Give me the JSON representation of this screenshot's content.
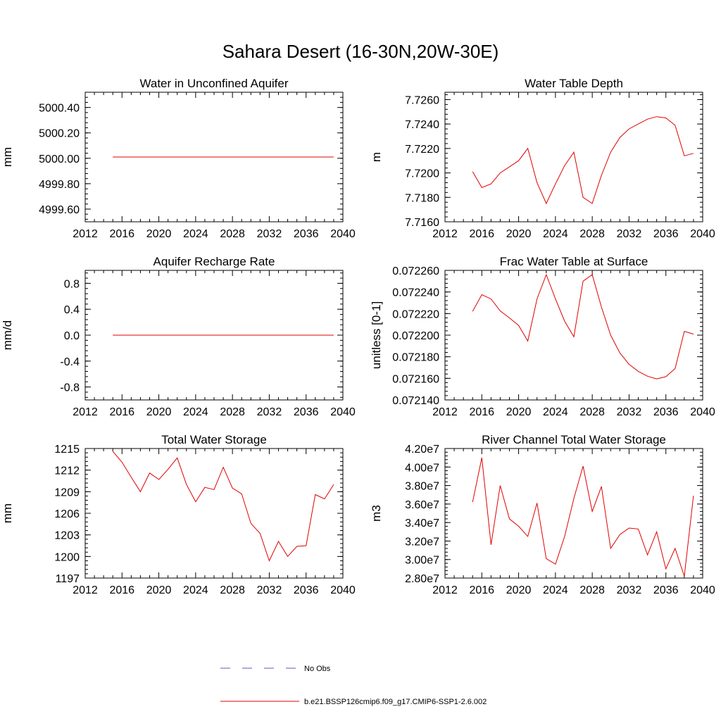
{
  "figure": {
    "title": "Sahara Desert (16-30N,20W-30E)"
  },
  "legend": {
    "items": [
      {
        "label": "No Obs",
        "color": "#5a5ac8",
        "style": "dashed"
      },
      {
        "label": "b.e21.BSSP126cmip6.f09_g17.CMIP6-SSP1-2.6.002",
        "color": "#e00000",
        "style": "solid"
      }
    ]
  },
  "chart_data": [
    {
      "type": "line",
      "title": "Water in Unconfined Aquifer",
      "ylabel": "mm",
      "xlim": [
        2012,
        2040
      ],
      "ylim": [
        4999.5,
        5000.52
      ],
      "xticks": [
        2012,
        2016,
        2020,
        2024,
        2028,
        2032,
        2036,
        2040
      ],
      "xtick_labels": [
        "2012",
        "2016",
        "2020",
        "2024",
        "2028",
        "2032",
        "2036",
        "2040"
      ],
      "yticks": [
        4999.6,
        4999.8,
        5000.0,
        5000.2,
        5000.4
      ],
      "ytick_labels": [
        "4999.60",
        "4999.80",
        "5000.00",
        "5000.20",
        "5000.40"
      ],
      "series": [
        {
          "color": "#e00000",
          "x": [
            2015,
            2039
          ],
          "y": [
            5000.01,
            5000.01
          ]
        }
      ]
    },
    {
      "type": "line",
      "title": "Water Table Depth",
      "ylabel": "m",
      "xlim": [
        2012,
        2040
      ],
      "ylim": [
        7.716,
        7.7266
      ],
      "xticks": [
        2012,
        2016,
        2020,
        2024,
        2028,
        2032,
        2036,
        2040
      ],
      "xtick_labels": [
        "2012",
        "2016",
        "2020",
        "2024",
        "2028",
        "2032",
        "2036",
        "2040"
      ],
      "yticks": [
        7.716,
        7.718,
        7.72,
        7.722,
        7.724,
        7.726
      ],
      "ytick_labels": [
        "7.7160",
        "7.7180",
        "7.7200",
        "7.7220",
        "7.7240",
        "7.7260"
      ],
      "series": [
        {
          "color": "#e00000",
          "x": [
            2015,
            2016,
            2017,
            2018,
            2019,
            2020,
            2021,
            2022,
            2023,
            2024,
            2025,
            2026,
            2027,
            2028,
            2029,
            2030,
            2031,
            2032,
            2033,
            2034,
            2035,
            2036,
            2037,
            2038,
            2039
          ],
          "y": [
            7.7201,
            7.7188,
            7.7191,
            7.72,
            7.7205,
            7.721,
            7.722,
            7.7192,
            7.7175,
            7.7191,
            7.7206,
            7.7217,
            7.718,
            7.7175,
            7.7198,
            7.7217,
            7.7229,
            7.7236,
            7.724,
            7.7244,
            7.7246,
            7.7245,
            7.7239,
            7.7214,
            7.7216
          ]
        }
      ]
    },
    {
      "type": "line",
      "title": "Aquifer Recharge Rate",
      "ylabel": "mm/d",
      "xlim": [
        2012,
        2040
      ],
      "ylim": [
        -1.0,
        1.0
      ],
      "xticks": [
        2012,
        2016,
        2020,
        2024,
        2028,
        2032,
        2036,
        2040
      ],
      "xtick_labels": [
        "2012",
        "2016",
        "2020",
        "2024",
        "2028",
        "2032",
        "2036",
        "2040"
      ],
      "yticks": [
        -0.8,
        -0.4,
        0.0,
        0.4,
        0.8
      ],
      "ytick_labels": [
        "-0.8",
        "-0.4",
        "0.0",
        "0.4",
        "0.8"
      ],
      "series": [
        {
          "color": "#e00000",
          "x": [
            2015,
            2039
          ],
          "y": [
            0.0,
            0.0
          ]
        }
      ]
    },
    {
      "type": "line",
      "title": "Frac Water Table at Surface",
      "ylabel": "unitless [0-1]",
      "xlim": [
        2012,
        2040
      ],
      "ylim": [
        0.07214,
        0.07226
      ],
      "xticks": [
        2012,
        2016,
        2020,
        2024,
        2028,
        2032,
        2036,
        2040
      ],
      "xtick_labels": [
        "2012",
        "2016",
        "2020",
        "2024",
        "2028",
        "2032",
        "2036",
        "2040"
      ],
      "yticks": [
        0.07214,
        0.07216,
        0.07218,
        0.0722,
        0.07222,
        0.07224,
        0.07226
      ],
      "ytick_labels": [
        "0.072140",
        "0.072160",
        "0.072180",
        "0.072200",
        "0.072220",
        "0.072240",
        "0.072260"
      ],
      "series": [
        {
          "color": "#e00000",
          "x": [
            2015,
            2016,
            2017,
            2018,
            2019,
            2020,
            2021,
            2022,
            2023,
            2024,
            2025,
            2026,
            2027,
            2028,
            2029,
            2030,
            2031,
            2032,
            2033,
            2034,
            2035,
            2036,
            2037,
            2038,
            2039
          ],
          "y": [
            0.072222,
            0.0722375,
            0.0722335,
            0.0722225,
            0.072216,
            0.072209,
            0.0721945,
            0.0722335,
            0.072256,
            0.0722335,
            0.072213,
            0.0721985,
            0.07225,
            0.072256,
            0.072226,
            0.0722,
            0.0721835,
            0.072173,
            0.0721665,
            0.072162,
            0.0721595,
            0.0721615,
            0.072169,
            0.0722035,
            0.072201
          ]
        }
      ]
    },
    {
      "type": "line",
      "title": "Total Water Storage",
      "ylabel": "mm",
      "xlim": [
        2012,
        2040
      ],
      "ylim": [
        1197,
        1215
      ],
      "xticks": [
        2012,
        2016,
        2020,
        2024,
        2028,
        2032,
        2036,
        2040
      ],
      "xtick_labels": [
        "2012",
        "2016",
        "2020",
        "2024",
        "2028",
        "2032",
        "2036",
        "2040"
      ],
      "yticks": [
        1197,
        1200,
        1203,
        1206,
        1209,
        1212,
        1215
      ],
      "ytick_labels": [
        "1197",
        "1200",
        "1203",
        "1206",
        "1209",
        "1212",
        "1215"
      ],
      "series": [
        {
          "color": "#e00000",
          "x": [
            2015,
            2016,
            2017,
            2018,
            2019,
            2020,
            2021,
            2022,
            2023,
            2024,
            2025,
            2026,
            2027,
            2028,
            2029,
            2030,
            2031,
            2032,
            2033,
            2034,
            2035,
            2036,
            2037,
            2038,
            2039
          ],
          "y": [
            1214.6,
            1213.1,
            1211.0,
            1209.0,
            1211.6,
            1210.7,
            1212.1,
            1213.7,
            1210.0,
            1207.6,
            1209.6,
            1209.3,
            1212.4,
            1209.5,
            1208.7,
            1204.6,
            1203.2,
            1199.4,
            1202.1,
            1200.0,
            1201.4,
            1201.5,
            1208.6,
            1208.0,
            1210.0
          ]
        }
      ]
    },
    {
      "type": "line",
      "title": "River Channel Total Water Storage",
      "ylabel": "m3",
      "xlim": [
        2012,
        2040
      ],
      "ylim": [
        28000000.0,
        42000000.0
      ],
      "xticks": [
        2012,
        2016,
        2020,
        2024,
        2028,
        2032,
        2036,
        2040
      ],
      "xtick_labels": [
        "2012",
        "2016",
        "2020",
        "2024",
        "2028",
        "2032",
        "2036",
        "2040"
      ],
      "yticks": [
        28000000.0,
        30000000.0,
        32000000.0,
        34000000.0,
        36000000.0,
        38000000.0,
        40000000.0,
        42000000.0
      ],
      "ytick_labels": [
        "2.80e7",
        "3.00e7",
        "3.20e7",
        "3.40e7",
        "3.60e7",
        "3.80e7",
        "4.00e7",
        "4.20e7"
      ],
      "series": [
        {
          "color": "#e00000",
          "x": [
            2015,
            2016,
            2017,
            2018,
            2019,
            2020,
            2021,
            2022,
            2023,
            2024,
            2025,
            2026,
            2027,
            2028,
            2029,
            2030,
            2031,
            2032,
            2033,
            2034,
            2035,
            2036,
            2037,
            2038,
            2039
          ],
          "y": [
            36200000.0,
            41000000.0,
            31600000.0,
            38000000.0,
            34400000.0,
            33600000.0,
            32500000.0,
            36100000.0,
            30100000.0,
            29500000.0,
            32500000.0,
            36600000.0,
            40100000.0,
            35200000.0,
            37900000.0,
            31200000.0,
            32700000.0,
            33400000.0,
            33300000.0,
            30500000.0,
            33000000.0,
            29000000.0,
            31200000.0,
            28200000.0,
            36900000.0
          ]
        }
      ]
    }
  ]
}
